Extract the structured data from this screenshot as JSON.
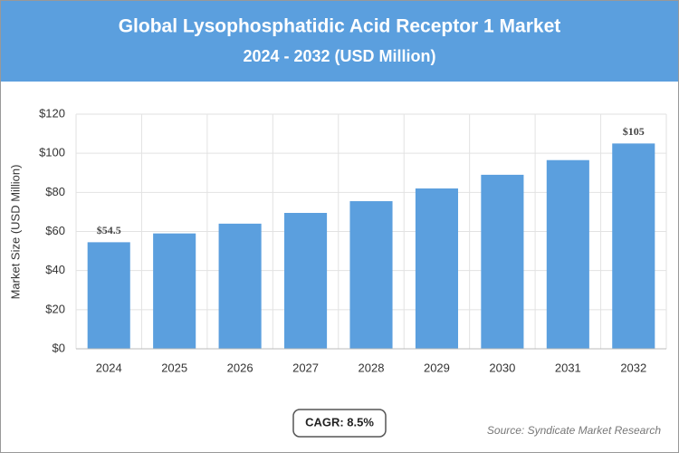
{
  "chart_data": {
    "type": "bar",
    "title": "Global Lysophosphatidic Acid Receptor 1 Market",
    "subtitle": "2024 - 2032 (USD Million)",
    "y_label": "Market Size (USD Million)",
    "categories": [
      "2024",
      "2025",
      "2026",
      "2027",
      "2028",
      "2029",
      "2030",
      "2031",
      "2032"
    ],
    "values": [
      54.5,
      59,
      64,
      69.5,
      75.5,
      82,
      89,
      96.5,
      105
    ],
    "value_labels": [
      "$54.5",
      null,
      null,
      null,
      null,
      null,
      null,
      null,
      "$105"
    ],
    "color": "#5b9fde",
    "ylim": [
      0,
      120
    ],
    "yticks": [
      {
        "value": 0,
        "label": "$0"
      },
      {
        "value": 20,
        "label": "$20"
      },
      {
        "value": 40,
        "label": "$40"
      },
      {
        "value": 60,
        "label": "$60"
      },
      {
        "value": 80,
        "label": "$80"
      },
      {
        "value": 100,
        "label": "$100"
      },
      {
        "value": 120,
        "label": "$120"
      }
    ],
    "grid": true,
    "cagr": "CAGR: 8.5%",
    "source": "Source: Syndicate Market Research"
  }
}
